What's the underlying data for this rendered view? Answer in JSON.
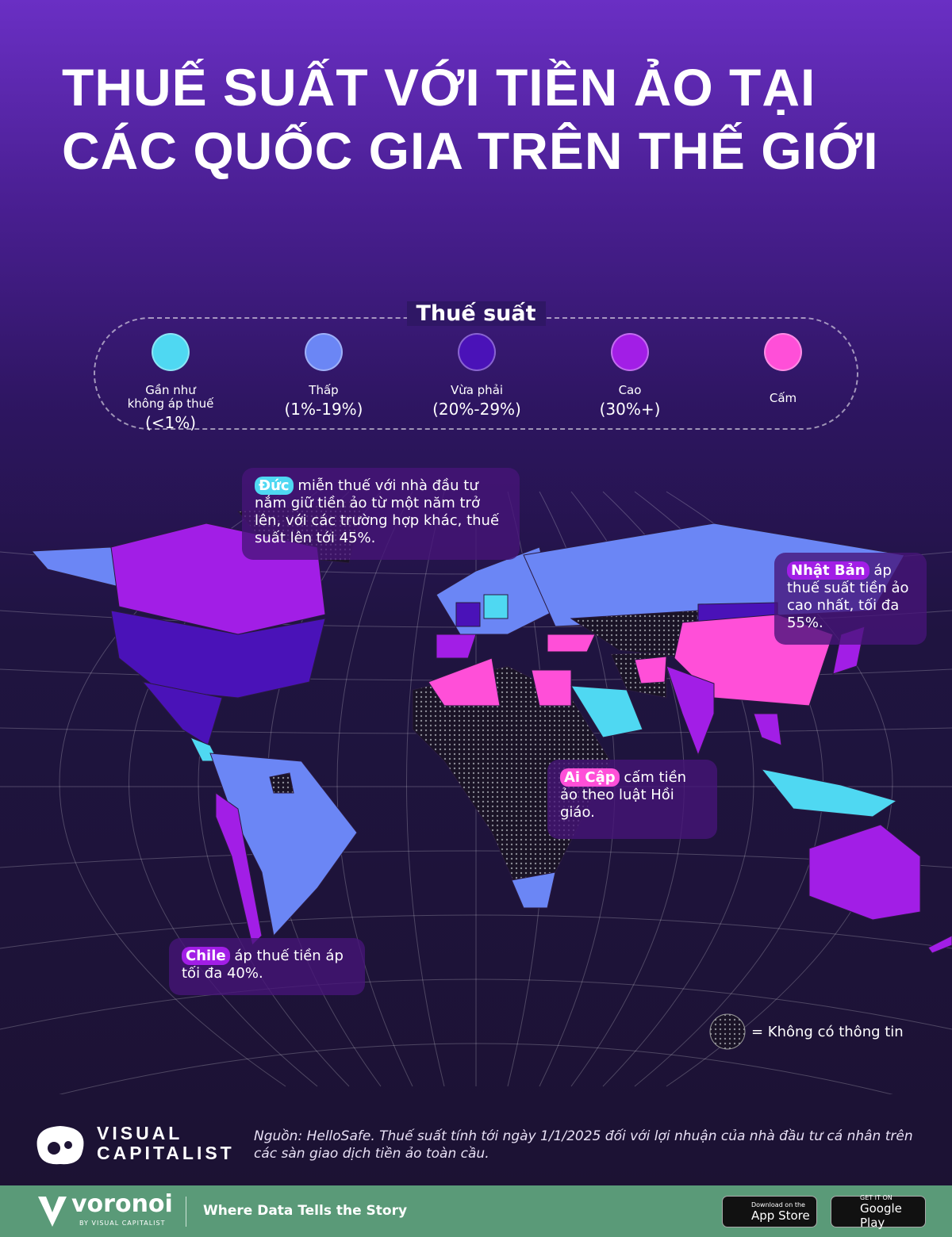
{
  "header": {
    "title_lines": [
      "THUẾ SUẤT VỚI TIỀN ẢO TẠI",
      "CÁC QUỐC GIA TRÊN THẾ GIỚI"
    ]
  },
  "legend": {
    "title": "Thuế suất",
    "items": [
      {
        "label": "Gần như\nkhông áp thuế",
        "range": "(<1%)",
        "color": "#4fd8f2"
      },
      {
        "label": "Thấp",
        "range": "(1%-19%)",
        "color": "#6b86f5"
      },
      {
        "label": "Vừa phải",
        "range": "(20%-29%)",
        "color": "#4a12b8"
      },
      {
        "label": "Cao",
        "range": "(30%+)",
        "color": "#a21ee6"
      },
      {
        "label": "Cấm",
        "color": "#ff4fd8"
      }
    ]
  },
  "annotations": [
    {
      "country": "Đức",
      "text": "miễn thuế với nhà đầu tư nắm giữ tiền ảo từ một năm trở lên, với các trường hợp khác, thuế suất lên tới 45%.",
      "color": "#4fd8f2"
    },
    {
      "country": "Nhật Bản",
      "text": "áp thuế suất tiền ảo cao nhất, tối đa 55%.",
      "color": "#a21ee6"
    },
    {
      "country": "Ai Cập",
      "text": "cấm tiền ảo theo luật Hồi giáo.",
      "color": "#ff4fd8"
    },
    {
      "country": "Chile",
      "text": "áp thuế tiền áp tối đa 40%.",
      "color": "#a21ee6"
    }
  ],
  "no_data_label": "= Không có thông tin",
  "logo_lines": [
    "VISUAL",
    "CAPITALIST"
  ],
  "source": "Nguồn: HelloSafe. Thuế suất tính tới ngày 1/1/2025 đối với lợi nhuận của nhà đầu tư cá nhân trên các sàn giao dịch tiền ảo toàn cầu.",
  "footer": {
    "brand": "voronoi",
    "by": "BY VISUAL CAPITALIST",
    "tagline": "Where Data Tells the Story",
    "app_store_small": "Download on the",
    "app_store": "App Store",
    "google_small": "GET IT ON",
    "google": "Google Play"
  }
}
